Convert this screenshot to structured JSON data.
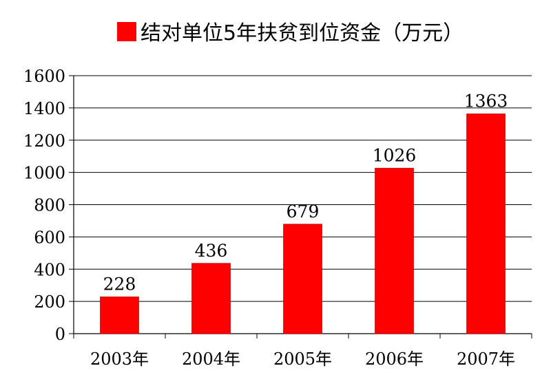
{
  "chart_data": {
    "type": "bar",
    "legend_position": "top",
    "series": [
      {
        "name": "结对单位5年扶贫到位资金（万元）",
        "color": "#ff0000",
        "values": [
          228,
          436,
          679,
          1026,
          1363
        ]
      }
    ],
    "categories": [
      "2003年",
      "2004年",
      "2005年",
      "2006年",
      "2007年"
    ],
    "ylim": [
      0,
      1600
    ],
    "yticks": [
      0,
      200,
      400,
      600,
      800,
      1000,
      1200,
      1400,
      1600
    ],
    "grid": true
  }
}
